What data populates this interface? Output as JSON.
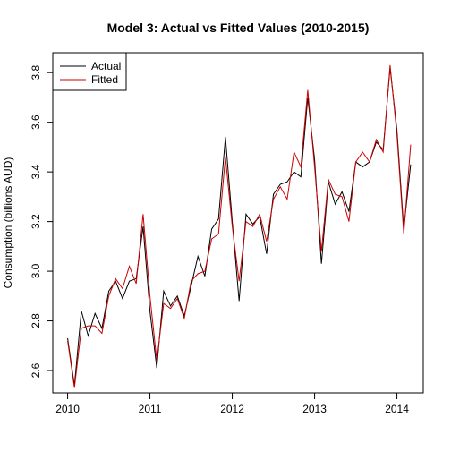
{
  "chart_data": {
    "type": "line",
    "title": "Model 3: Actual vs Fitted Values (2010-2015)",
    "xlabel": "",
    "ylabel": "Consumption (billions AUD)",
    "xlim": [
      2009.82,
      2014.32
    ],
    "ylim": [
      2.51,
      3.88
    ],
    "x_ticks": [
      2010,
      2011,
      2012,
      2013,
      2014
    ],
    "x_tick_labels": [
      "2010",
      "2011",
      "2012",
      "2013",
      "2014"
    ],
    "y_ticks": [
      2.6,
      2.8,
      3.0,
      3.2,
      3.4,
      3.6,
      3.8
    ],
    "y_tick_labels": [
      "2.6",
      "2.8",
      "3.0",
      "3.2",
      "3.4",
      "3.6",
      "3.8"
    ],
    "legend_position": "top-left",
    "grid": false,
    "x": [
      2010.0,
      2010.083,
      2010.167,
      2010.25,
      2010.333,
      2010.417,
      2010.5,
      2010.583,
      2010.667,
      2010.75,
      2010.833,
      2010.917,
      2011.0,
      2011.083,
      2011.167,
      2011.25,
      2011.333,
      2011.417,
      2011.5,
      2011.583,
      2011.667,
      2011.75,
      2011.833,
      2011.917,
      2012.0,
      2012.083,
      2012.167,
      2012.25,
      2012.333,
      2012.417,
      2012.5,
      2012.583,
      2012.667,
      2012.75,
      2012.833,
      2012.917,
      2013.0,
      2013.083,
      2013.167,
      2013.25,
      2013.333,
      2013.417,
      2013.5,
      2013.583,
      2013.667,
      2013.75,
      2013.833,
      2013.917,
      2014.0,
      2014.083,
      2014.167
    ],
    "series": [
      {
        "name": "Actual",
        "color": "#000000",
        "values": [
          2.73,
          2.54,
          2.84,
          2.74,
          2.83,
          2.77,
          2.92,
          2.96,
          2.89,
          2.96,
          2.97,
          3.18,
          2.84,
          2.61,
          2.92,
          2.86,
          2.9,
          2.82,
          2.94,
          3.06,
          2.98,
          3.17,
          3.21,
          3.54,
          3.2,
          2.88,
          3.23,
          3.19,
          3.22,
          3.07,
          3.31,
          3.35,
          3.36,
          3.4,
          3.38,
          3.7,
          3.45,
          3.03,
          3.36,
          3.27,
          3.32,
          3.24,
          3.44,
          3.42,
          3.44,
          3.52,
          3.49,
          3.82,
          3.57,
          3.17,
          3.43
        ]
      },
      {
        "name": "Fitted",
        "color": "#cc0000",
        "values": [
          2.72,
          2.53,
          2.77,
          2.78,
          2.78,
          2.75,
          2.9,
          2.97,
          2.93,
          3.02,
          2.95,
          3.23,
          2.9,
          2.64,
          2.87,
          2.85,
          2.89,
          2.81,
          2.96,
          2.99,
          3.0,
          3.13,
          3.15,
          3.46,
          3.18,
          2.96,
          3.2,
          3.18,
          3.23,
          3.12,
          3.29,
          3.34,
          3.29,
          3.48,
          3.42,
          3.73,
          3.42,
          3.08,
          3.37,
          3.31,
          3.3,
          3.2,
          3.44,
          3.48,
          3.44,
          3.53,
          3.48,
          3.83,
          3.55,
          3.15,
          3.51
        ]
      }
    ]
  }
}
